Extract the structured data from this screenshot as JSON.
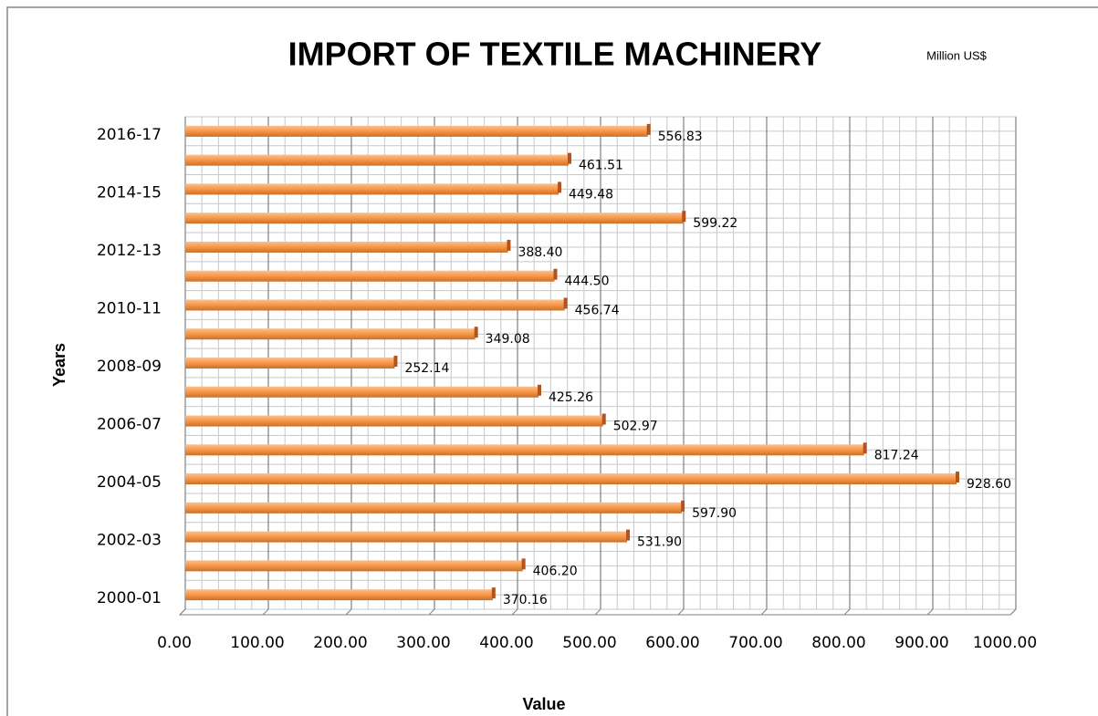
{
  "chart_data": {
    "type": "bar",
    "orientation": "horizontal",
    "title": "IMPORT OF TEXTILE MACHINERY",
    "subtitle": "Million US$",
    "x_label": "Value",
    "y_label": "Years",
    "categories": [
      "2000-01",
      null,
      "2002-03",
      null,
      "2004-05",
      null,
      "2006-07",
      null,
      "2008-09",
      null,
      "2010-11",
      null,
      "2012-13",
      null,
      "2014-15",
      null,
      "2016-17"
    ],
    "values": [
      370.16,
      406.2,
      531.9,
      597.9,
      928.6,
      817.24,
      502.97,
      425.26,
      252.14,
      349.08,
      456.74,
      444.5,
      388.4,
      599.22,
      449.48,
      461.51,
      556.83
    ],
    "value_labels": [
      "370.16",
      "406.20",
      "531.90",
      "597.90",
      "928.60",
      "817.24",
      "502.97",
      "425.26",
      "252.14",
      "349.08",
      "456.74",
      "444.50",
      "388.40",
      "599.22",
      "449.48",
      "461.51",
      "556.83"
    ],
    "color": "#f79646",
    "xlim": [
      0,
      1000
    ],
    "xticks": [
      {
        "value": 0,
        "label": "0.00"
      },
      {
        "value": 100,
        "label": "100.00"
      },
      {
        "value": 200,
        "label": "200.00"
      },
      {
        "value": 300,
        "label": "300.00"
      },
      {
        "value": 400,
        "label": "400.00"
      },
      {
        "value": 500,
        "label": "500.00"
      },
      {
        "value": 600,
        "label": "600.00"
      },
      {
        "value": 700,
        "label": "700.00"
      },
      {
        "value": 800,
        "label": "800.00"
      },
      {
        "value": 900,
        "label": "900.00"
      },
      {
        "value": 1000,
        "label": "1000.00"
      }
    ],
    "grid": true
  }
}
